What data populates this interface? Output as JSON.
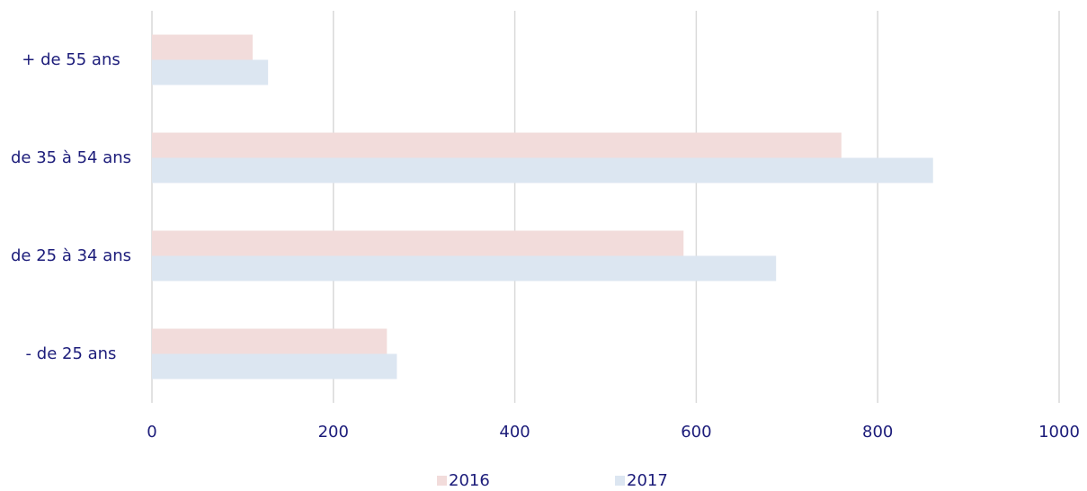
{
  "chart_data": {
    "type": "bar",
    "orientation": "horizontal",
    "categories": [
      "+ de 55 ans",
      "de 35 à 54 ans",
      "de 25 à 34 ans",
      "- de 25 ans"
    ],
    "series": [
      {
        "name": "2016",
        "color": "#f2dcdb",
        "values": [
          111,
          760,
          586,
          259
        ]
      },
      {
        "name": "2017",
        "color": "#dce6f1",
        "values": [
          128,
          861,
          688,
          270
        ]
      }
    ],
    "xlim": [
      0,
      1000
    ],
    "xticks": [
      0,
      200,
      400,
      600,
      800,
      1000
    ],
    "grid": true,
    "legend": "bottom"
  }
}
